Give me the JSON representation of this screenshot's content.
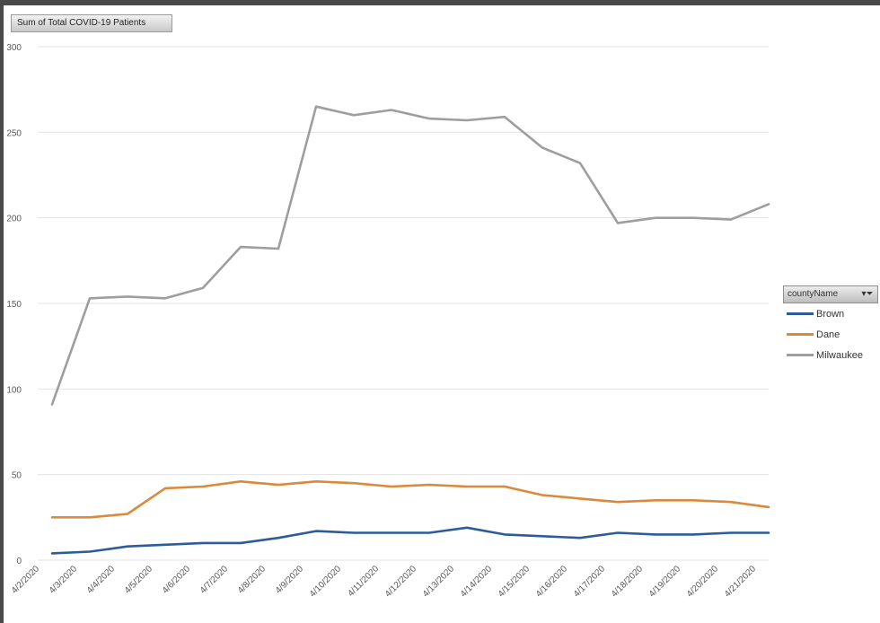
{
  "pivot": {
    "value_field": "Sum of Total COVID-19 Patients"
  },
  "legend": {
    "field": "countyName",
    "filter_icon": "filter-dropdown-icon"
  },
  "chart_data": {
    "type": "line",
    "x": [
      "4/2/2020",
      "4/3/2020",
      "4/4/2020",
      "4/5/2020",
      "4/6/2020",
      "4/7/2020",
      "4/8/2020",
      "4/9/2020",
      "4/10/2020",
      "4/11/2020",
      "4/12/2020",
      "4/13/2020",
      "4/14/2020",
      "4/15/2020",
      "4/16/2020",
      "4/17/2020",
      "4/18/2020",
      "4/19/2020",
      "4/20/2020",
      "4/21/2020"
    ],
    "y_ticks": [
      0,
      50,
      100,
      150,
      200,
      250,
      300
    ],
    "ylim": [
      0,
      300
    ],
    "grid": true,
    "legend_position": "right",
    "series": [
      {
        "name": "Brown",
        "color": "#2e5b9a",
        "values": [
          4,
          5,
          8,
          9,
          10,
          10,
          13,
          17,
          16,
          16,
          16,
          19,
          15,
          14,
          13,
          16,
          15,
          15,
          16,
          16
        ]
      },
      {
        "name": "Dane",
        "color": "#d98a3d",
        "values": [
          25,
          25,
          27,
          42,
          43,
          46,
          44,
          46,
          45,
          43,
          44,
          43,
          43,
          38,
          36,
          34,
          35,
          35,
          34,
          31
        ]
      },
      {
        "name": "Milwaukee",
        "color": "#9e9e9e",
        "values": [
          91,
          153,
          154,
          153,
          159,
          183,
          182,
          265,
          260,
          263,
          258,
          257,
          259,
          241,
          232,
          197,
          200,
          200,
          199,
          208
        ]
      }
    ]
  }
}
